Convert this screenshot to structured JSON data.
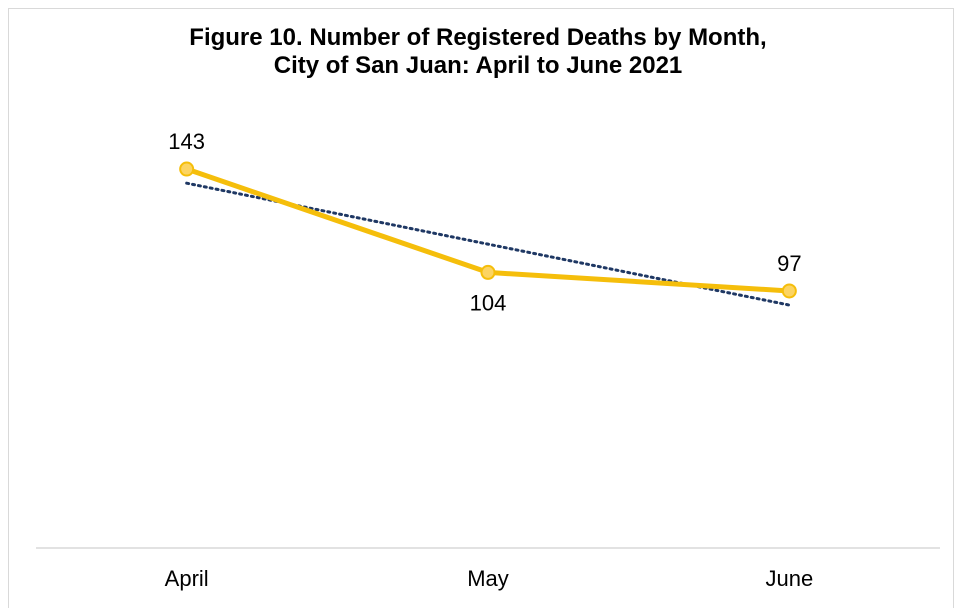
{
  "chart_data": {
    "type": "line",
    "title_line1": "Figure 10. Number of Registered Deaths by Month,",
    "title_line2": "City of San Juan: April to June 2021",
    "xlabel": "",
    "ylabel": "",
    "categories": [
      "April",
      "May",
      "June"
    ],
    "series": [
      {
        "values": [
          143,
          104,
          97
        ],
        "color": "#f5be0b",
        "marker_fill": "#fcd462",
        "data_labels": [
          "143",
          "104",
          "97"
        ],
        "data_label_positions": [
          "above",
          "below",
          "above"
        ]
      }
    ],
    "trendline": {
      "type": "linear",
      "style": "dotted",
      "color": "#1f3864"
    },
    "ylim": [
      0,
      160
    ],
    "grid": false,
    "legend": "none"
  }
}
